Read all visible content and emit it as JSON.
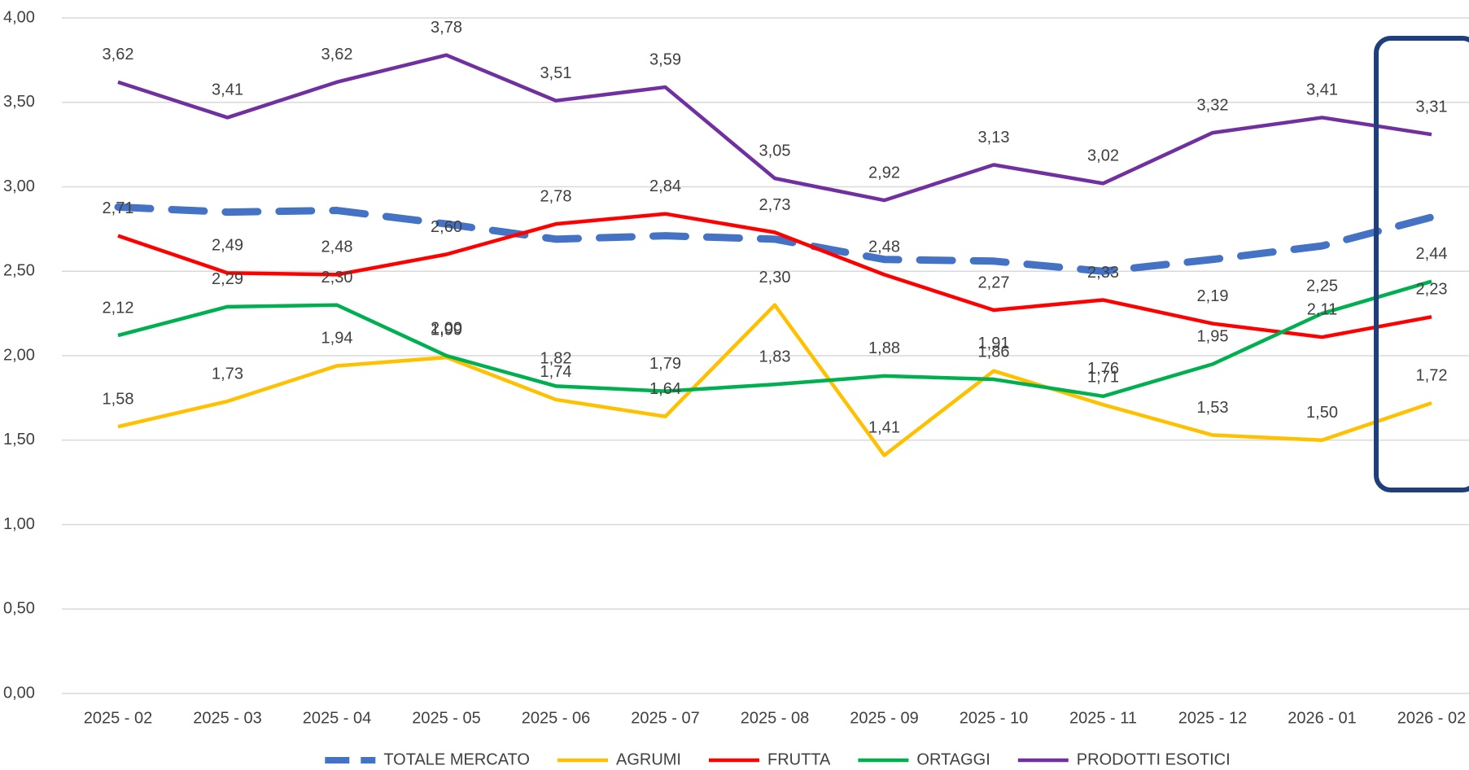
{
  "chart_data": {
    "type": "line",
    "categories": [
      "2025 - 02",
      "2025 - 03",
      "2025 - 04",
      "2025 - 05",
      "2025 - 06",
      "2025 - 07",
      "2025 - 08",
      "2025 - 09",
      "2025 - 10",
      "2025 - 11",
      "2025 - 12",
      "2026 - 01",
      "2026 - 02"
    ],
    "ylim": [
      0,
      4
    ],
    "yticks": [
      {
        "value": 0,
        "label": "0,00"
      },
      {
        "value": 0.5,
        "label": "0,50"
      },
      {
        "value": 1,
        "label": "1,00"
      },
      {
        "value": 1.5,
        "label": "1,50"
      },
      {
        "value": 2,
        "label": "2,00"
      },
      {
        "value": 2.5,
        "label": "2,50"
      },
      {
        "value": 3,
        "label": "3,00"
      },
      {
        "value": 3.5,
        "label": "3,50"
      },
      {
        "value": 4,
        "label": "4,00"
      }
    ],
    "grid": true,
    "legend": "bottom",
    "series": [
      {
        "name": "TOTALE MERCATO",
        "color": "#4472c4",
        "dashed": true,
        "values": [
          2.88,
          2.85,
          2.86,
          2.78,
          2.69,
          2.71,
          2.69,
          2.57,
          2.56,
          2.5,
          2.57,
          2.65,
          2.82
        ]
      },
      {
        "name": "AGRUMI",
        "color": "#ffc000",
        "values": [
          1.58,
          1.73,
          1.94,
          1.99,
          1.74,
          1.64,
          2.3,
          1.41,
          1.91,
          1.71,
          1.53,
          1.5,
          1.72
        ],
        "value_labels": [
          "1,58",
          "1,73",
          "1,94",
          "1,99",
          "1,74",
          "1,64",
          "2,30",
          "1,41",
          "1,91",
          "1,71",
          "1,53",
          "1,50",
          "1,72"
        ]
      },
      {
        "name": "FRUTTA",
        "color": "#ff0000",
        "values": [
          2.71,
          2.49,
          2.48,
          2.6,
          2.78,
          2.84,
          2.73,
          2.48,
          2.27,
          2.33,
          2.19,
          2.11,
          2.23
        ],
        "value_labels": [
          "2,71",
          "2,49",
          "2,48",
          "2,60",
          "2,78",
          "2,84",
          "2,73",
          "2,48",
          "2,27",
          "2,33",
          "2,19",
          "2,11",
          "2,23"
        ]
      },
      {
        "name": "ORTAGGI",
        "color": "#00b050",
        "values": [
          2.12,
          2.29,
          2.3,
          2.0,
          1.82,
          1.79,
          1.83,
          1.88,
          1.86,
          1.76,
          1.95,
          2.25,
          2.44
        ],
        "value_labels": [
          "2,12",
          "2,29",
          "2,30",
          "2,00",
          "1,82",
          "1,79",
          "1,83",
          "1,88",
          "1,86",
          "1,76",
          "1,95",
          "2,25",
          "2,44"
        ]
      },
      {
        "name": "PRODOTTI ESOTICI",
        "color": "#7030a0",
        "values": [
          3.62,
          3.41,
          3.62,
          3.78,
          3.51,
          3.59,
          3.05,
          2.92,
          3.13,
          3.02,
          3.32,
          3.41,
          3.31
        ],
        "value_labels": [
          "3,62",
          "3,41",
          "3,62",
          "3,78",
          "3,51",
          "3,59",
          "3,05",
          "2,92",
          "3,13",
          "3,02",
          "3,32",
          "3,41",
          "3,31"
        ]
      }
    ]
  }
}
